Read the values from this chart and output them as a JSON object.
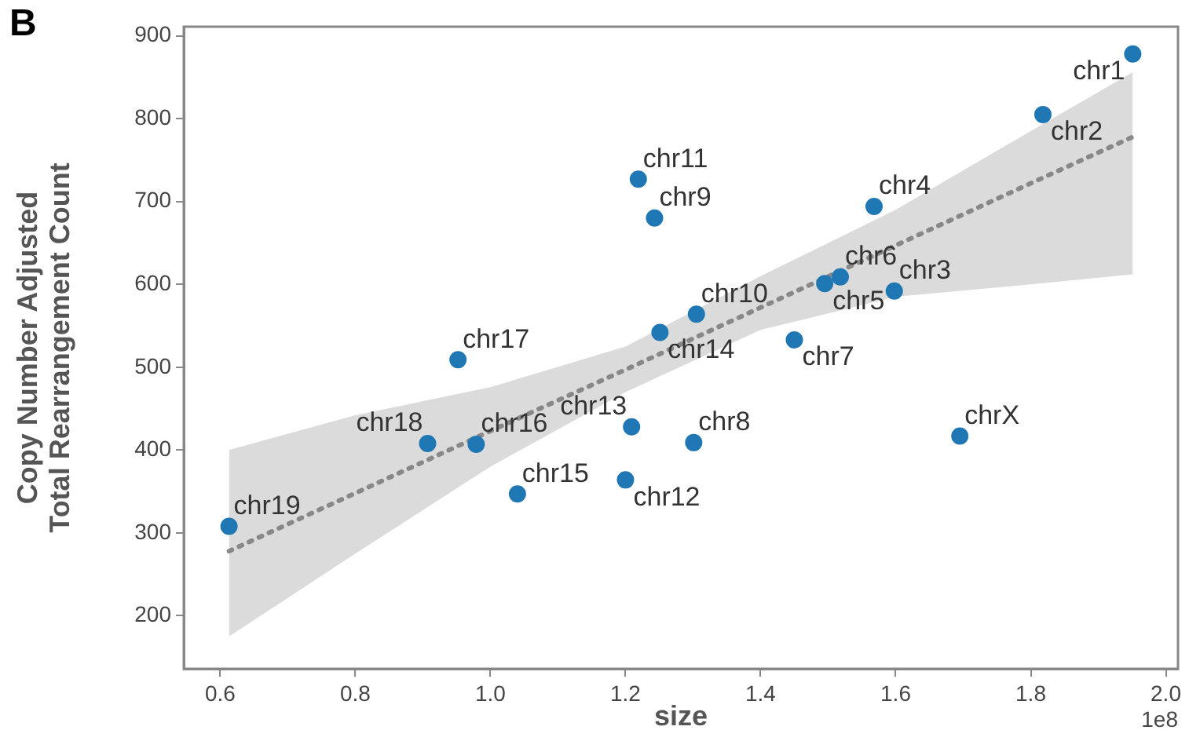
{
  "chart_data": {
    "type": "scatter",
    "title": "B",
    "xlabel": "size",
    "ylabel": "Copy Number Adjusted\nTotal Rearrangement Count",
    "marker": "circle",
    "grid": false,
    "legend": false,
    "xlim": [
      0.546,
      2.018
    ],
    "ylim": [
      136,
      911
    ],
    "xticks": [
      0.6,
      0.8,
      {
        "value": 1,
        "label": "1.0"
      },
      1.2,
      1.4,
      1.6,
      1.8,
      {
        "value": 2,
        "label": "2.0"
      }
    ],
    "yticks": [
      200,
      300,
      400,
      500,
      600,
      700,
      800,
      900
    ],
    "series": [
      {
        "color": "#1f77b4",
        "x": [
          1.951,
          1.818,
          1.598,
          1.568,
          1.495,
          1.518,
          1.45,
          1.301,
          1.243,
          1.305,
          1.219,
          1.2,
          1.209,
          1.251,
          1.04,
          0.979,
          0.952,
          0.907,
          0.613,
          1.695
        ],
        "values": [
          878,
          805,
          592,
          694,
          601,
          609,
          533,
          409,
          680,
          564,
          727,
          364,
          428,
          542,
          347,
          407,
          509,
          408,
          308,
          417
        ]
      },
      {
        "type": "line",
        "color": "#888888",
        "line_style": "dotted",
        "marker": "none",
        "x": [
          0.613,
          0.8,
          1.0,
          1.2,
          1.4,
          1.6,
          1.8,
          1.951
        ],
        "values": [
          278,
          348,
          423,
          497,
          572,
          647,
          722,
          778
        ],
        "lower": [
          175,
          275,
          380,
          470,
          545,
          585,
          600,
          612
        ],
        "upper": [
          400,
          442,
          476,
          525,
          610,
          690,
          785,
          856
        ]
      }
    ],
    "annotations": [
      {
        "text": "chr1",
        "x": 1.951,
        "y": 878
      },
      {
        "text": "chr2",
        "x": 1.818,
        "y": 805
      },
      {
        "text": "chr3",
        "x": 1.598,
        "y": 592
      },
      {
        "text": "chr4",
        "x": 1.568,
        "y": 694
      },
      {
        "text": "chr5",
        "x": 1.495,
        "y": 601
      },
      {
        "text": "chr6",
        "x": 1.518,
        "y": 609
      },
      {
        "text": "chr7",
        "x": 1.45,
        "y": 533
      },
      {
        "text": "chr8",
        "x": 1.301,
        "y": 409
      },
      {
        "text": "chr9",
        "x": 1.243,
        "y": 680
      },
      {
        "text": "chr10",
        "x": 1.305,
        "y": 564
      },
      {
        "text": "chr11",
        "x": 1.219,
        "y": 727
      },
      {
        "text": "chr12",
        "x": 1.2,
        "y": 364
      },
      {
        "text": "chr13",
        "x": 1.209,
        "y": 428
      },
      {
        "text": "chr14",
        "x": 1.251,
        "y": 542
      },
      {
        "text": "chr15",
        "x": 1.04,
        "y": 347
      },
      {
        "text": "chr16",
        "x": 0.979,
        "y": 407
      },
      {
        "text": "chr17",
        "x": 0.952,
        "y": 509
      },
      {
        "text": "chr18",
        "x": 0.907,
        "y": 408
      },
      {
        "text": "chr19",
        "x": 0.613,
        "y": 308
      },
      {
        "text": "chrX",
        "x": 1.695,
        "y": 417
      },
      "1e8"
    ]
  }
}
